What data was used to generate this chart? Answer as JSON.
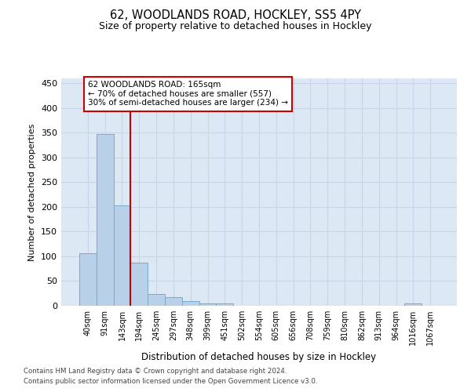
{
  "title_line1": "62, WOODLANDS ROAD, HOCKLEY, SS5 4PY",
  "title_line2": "Size of property relative to detached houses in Hockley",
  "xlabel": "Distribution of detached houses by size in Hockley",
  "ylabel": "Number of detached properties",
  "categories": [
    "40sqm",
    "91sqm",
    "143sqm",
    "194sqm",
    "245sqm",
    "297sqm",
    "348sqm",
    "399sqm",
    "451sqm",
    "502sqm",
    "554sqm",
    "605sqm",
    "656sqm",
    "708sqm",
    "759sqm",
    "810sqm",
    "862sqm",
    "913sqm",
    "964sqm",
    "1016sqm",
    "1067sqm"
  ],
  "values": [
    107,
    348,
    203,
    88,
    24,
    18,
    10,
    5,
    4,
    0,
    0,
    0,
    0,
    0,
    0,
    0,
    0,
    0,
    0,
    4,
    0
  ],
  "bar_color": "#b8d0e8",
  "bar_edge_color": "#7aaac8",
  "grid_color": "#c8d4e8",
  "bg_color": "#dde8f5",
  "vline_x": 2.5,
  "vline_color": "#cc0000",
  "annotation_box_text": "62 WOODLANDS ROAD: 165sqm\n← 70% of detached houses are smaller (557)\n30% of semi-detached houses are larger (234) →",
  "footer_line1": "Contains HM Land Registry data © Crown copyright and database right 2024.",
  "footer_line2": "Contains public sector information licensed under the Open Government Licence v3.0.",
  "ylim": [
    0,
    460
  ],
  "yticks": [
    0,
    50,
    100,
    150,
    200,
    250,
    300,
    350,
    400,
    450
  ]
}
